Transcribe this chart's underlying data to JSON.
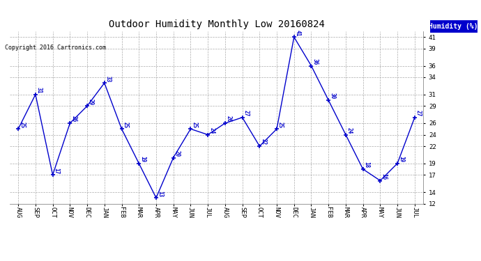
{
  "title": "Outdoor Humidity Monthly Low 20160824",
  "copyright_text": "Copyright 2016 Cartronics.com",
  "legend_label": "Humidity (%)",
  "categories": [
    "AUG",
    "SEP",
    "OCT",
    "NOV",
    "DEC",
    "JAN",
    "FEB",
    "MAR",
    "APR",
    "MAY",
    "JUN",
    "JUL",
    "AUG",
    "SEP",
    "OCT",
    "NOV",
    "DEC",
    "JAN",
    "FEB",
    "MAR",
    "APR",
    "MAY",
    "JUN",
    "JUL"
  ],
  "values": [
    25,
    31,
    17,
    26,
    29,
    33,
    25,
    19,
    13,
    20,
    25,
    24,
    26,
    27,
    22,
    25,
    41,
    36,
    30,
    24,
    18,
    16,
    19,
    27
  ],
  "line_color": "#0000cc",
  "marker_color": "#0000cc",
  "bg_color": "#ffffff",
  "plot_bg_color": "#ffffff",
  "grid_color": "#aaaaaa",
  "title_color": "#000000",
  "label_color": "#0000cc",
  "legend_bg": "#0000cc",
  "legend_text_color": "#ffffff",
  "ylim_min": 12,
  "ylim_max": 42,
  "yticks": [
    12,
    14,
    17,
    19,
    22,
    24,
    26,
    29,
    31,
    34,
    36,
    39,
    41
  ],
  "title_fontsize": 10,
  "copyright_fontsize": 6,
  "label_fontsize": 5.5,
  "tick_fontsize": 6.5,
  "legend_fontsize": 7
}
